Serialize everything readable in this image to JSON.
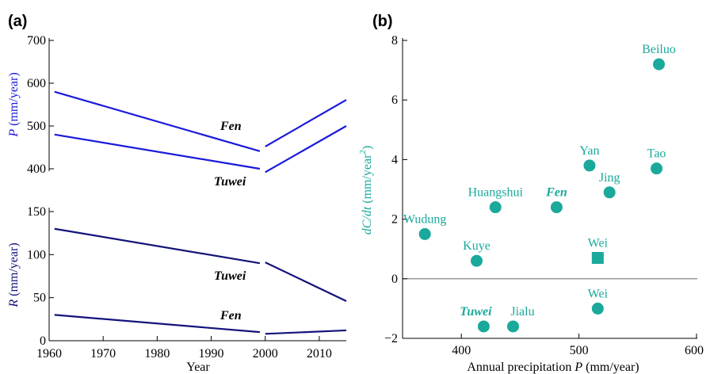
{
  "panel_a_label": "(a)",
  "panel_b_label": "(b)",
  "colors": {
    "blue": "#1a1adb",
    "navy": "#13137a",
    "teal": "#1aa99a",
    "axis": "#000000",
    "zero_line": "#777777"
  },
  "chart_data": [
    {
      "type": "line",
      "panel": "(a) top",
      "ylabel_var": "P",
      "ylabel_unit": "(mm/year)",
      "xlim": [
        1960,
        2015
      ],
      "ylim": [
        400,
        700
      ],
      "yticks": [
        "400",
        "500",
        "600",
        "700"
      ],
      "series": [
        {
          "name": "Fen",
          "color": "#1a1adb",
          "segments": [
            [
              [
                1961,
                580
              ],
              [
                1999,
                441
              ]
            ],
            [
              [
                2000,
                452
              ],
              [
                2015,
                561
              ]
            ]
          ]
        },
        {
          "name": "Tuwei",
          "color": "#1a1adb",
          "segments": [
            [
              [
                1961,
                480
              ],
              [
                1999,
                400
              ]
            ],
            [
              [
                2000,
                392
              ],
              [
                2015,
                500
              ]
            ]
          ]
        }
      ]
    },
    {
      "type": "line",
      "panel": "(a) bottom",
      "ylabel_var": "R",
      "ylabel_unit": "(mm/year)",
      "xlabel": "Year",
      "xlim": [
        1960,
        2015
      ],
      "ylim": [
        0,
        150
      ],
      "xticks": [
        "1960",
        "1970",
        "1980",
        "1990",
        "2000",
        "2010"
      ],
      "yticks": [
        "0",
        "50",
        "100",
        "150"
      ],
      "series": [
        {
          "name": "Tuwei",
          "color": "#13137a",
          "segments": [
            [
              [
                1961,
                130
              ],
              [
                1999,
                90
              ]
            ],
            [
              [
                2000,
                91
              ],
              [
                2015,
                46
              ]
            ]
          ]
        },
        {
          "name": "Fen",
          "color": "#13137a",
          "segments": [
            [
              [
                1961,
                30
              ],
              [
                1999,
                10
              ]
            ],
            [
              [
                2000,
                8
              ],
              [
                2015,
                12
              ]
            ]
          ]
        }
      ]
    },
    {
      "type": "scatter",
      "panel": "(b)",
      "xlabel": "Annual precipitation",
      "xlabel_var": "P",
      "xlabel_unit": "(mm/year)",
      "ylabel_var": "dC/dt",
      "ylabel_unit": "(mm/year",
      "ylabel_sup": "2",
      "ylabel_close": ")",
      "xlim": [
        350,
        600
      ],
      "ylim": [
        -2,
        8
      ],
      "xticks": [
        "400",
        "500",
        "600"
      ],
      "yticks": [
        "−2",
        "0",
        "2",
        "4",
        "6",
        "8"
      ],
      "color": "#1aa99a",
      "points": [
        {
          "label": "Beiluo",
          "x": 568,
          "y": 7.2,
          "marker": "circle"
        },
        {
          "label": "Tao",
          "x": 566,
          "y": 3.7,
          "marker": "circle"
        },
        {
          "label": "Yan",
          "x": 509,
          "y": 3.8,
          "marker": "circle"
        },
        {
          "label": "Jing",
          "x": 526,
          "y": 2.9,
          "marker": "circle"
        },
        {
          "label": "Huangshui",
          "x": 429,
          "y": 2.4,
          "marker": "circle"
        },
        {
          "label": "Fen",
          "x": 481,
          "y": 2.4,
          "marker": "circle"
        },
        {
          "label": "Wudung",
          "x": 369,
          "y": 1.5,
          "marker": "circle"
        },
        {
          "label": "Kuye",
          "x": 413,
          "y": 0.6,
          "marker": "circle"
        },
        {
          "label": "Wei",
          "x": 516,
          "y": 0.7,
          "marker": "square"
        },
        {
          "label": "Wei",
          "x": 516,
          "y": -1.0,
          "marker": "circle"
        },
        {
          "label": "Tuwei",
          "x": 419,
          "y": -1.6,
          "marker": "circle"
        },
        {
          "label": "Jialu",
          "x": 444,
          "y": -1.6,
          "marker": "circle"
        }
      ],
      "hline": 0
    }
  ]
}
